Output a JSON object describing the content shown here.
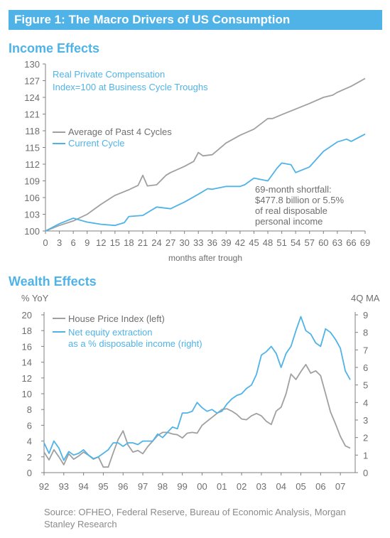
{
  "figure_title": "Figure 1: The Macro Drivers of US Consumption",
  "sections": {
    "income_title": "Income Effects",
    "wealth_title": "Wealth Effects"
  },
  "source_note": "Source: OFHEO, Federal Reserve, Bureau of Economic Analysis, Morgan Stanley Research",
  "colors": {
    "accent": "#4fb3e8",
    "gray_series": "#a0a0a0",
    "axis": "#7f7f7f"
  },
  "chart_data": [
    {
      "type": "line",
      "title": "Real Private Compensation",
      "subtitle": "Index=100 at Business Cycle Troughs",
      "xlabel": "months after trough",
      "ylabel": "",
      "xlim": [
        0,
        69
      ],
      "ylim": [
        100,
        130
      ],
      "x_ticks": [
        0,
        3,
        6,
        9,
        12,
        15,
        18,
        21,
        24,
        27,
        30,
        33,
        36,
        39,
        42,
        45,
        48,
        51,
        54,
        57,
        60,
        63,
        66,
        69
      ],
      "y_ticks": [
        100,
        103,
        106,
        109,
        112,
        115,
        118,
        121,
        124,
        127,
        130
      ],
      "legend_position": "upper-left",
      "grid": false,
      "annotation": [
        "69-month shortfall:",
        "$477.8 billion or 5.5%",
        "of real disposable",
        "personal income"
      ],
      "series": [
        {
          "name": "Average of Past 4 Cycles",
          "color": "#a0a0a0",
          "x": [
            0,
            3,
            6,
            9,
            12,
            15,
            18,
            20,
            21,
            22,
            24,
            26,
            27,
            30,
            32,
            33,
            34,
            36,
            39,
            42,
            45,
            48,
            49,
            51,
            54,
            57,
            60,
            62,
            63,
            66,
            69
          ],
          "y": [
            100.0,
            101.0,
            101.8,
            103.0,
            104.8,
            106.4,
            107.4,
            108.2,
            110.0,
            108.1,
            108.3,
            110.0,
            110.5,
            111.6,
            112.5,
            114.1,
            113.5,
            113.7,
            115.8,
            117.2,
            118.3,
            120.2,
            120.2,
            120.9,
            121.9,
            122.9,
            124.0,
            124.4,
            124.9,
            126.0,
            127.4
          ]
        },
        {
          "name": "Current Cycle",
          "color": "#4fb3e8",
          "x": [
            0,
            3,
            6,
            9,
            12,
            15,
            17,
            18,
            21,
            24,
            27,
            30,
            33,
            35,
            36,
            39,
            42,
            43,
            45,
            48,
            50,
            51,
            53,
            54,
            57,
            60,
            63,
            65,
            66,
            69
          ],
          "y": [
            100.0,
            101.3,
            102.3,
            101.6,
            101.2,
            101.0,
            101.5,
            102.6,
            102.8,
            104.3,
            104.0,
            105.2,
            106.6,
            107.6,
            107.5,
            108.0,
            108.0,
            108.3,
            109.5,
            109.0,
            111.3,
            112.2,
            111.9,
            110.5,
            111.5,
            114.3,
            116.0,
            116.5,
            116.1,
            117.4
          ]
        }
      ]
    },
    {
      "type": "line",
      "title": "",
      "xlabel": "",
      "ylabel": "% YoY",
      "y2label": "4Q MA",
      "xlim": [
        1992,
        2007.75
      ],
      "ylim": [
        0,
        20
      ],
      "y2lim": [
        0,
        9
      ],
      "x_tick_labels": [
        "92",
        "93",
        "94",
        "95",
        "96",
        "97",
        "98",
        "99",
        "00",
        "01",
        "02",
        "03",
        "04",
        "05",
        "06",
        "07"
      ],
      "y_ticks": [
        0,
        2,
        4,
        6,
        8,
        10,
        12,
        14,
        16,
        18,
        20
      ],
      "y2_ticks": [
        0,
        1,
        2,
        3,
        4,
        5,
        6,
        7,
        8,
        9
      ],
      "legend_position": "upper-left",
      "grid": false,
      "series": [
        {
          "name": "House Price Index (left)",
          "axis": "left",
          "color": "#a0a0a0",
          "x": [
            1992.0,
            1992.25,
            1992.5,
            1992.75,
            1993.0,
            1993.25,
            1993.5,
            1993.75,
            1994.0,
            1994.25,
            1994.5,
            1994.75,
            1995.0,
            1995.25,
            1995.5,
            1995.75,
            1996.0,
            1996.25,
            1996.5,
            1996.75,
            1997.0,
            1997.25,
            1997.5,
            1997.75,
            1998.0,
            1998.25,
            1998.5,
            1998.75,
            1999.0,
            1999.25,
            1999.5,
            1999.75,
            2000.0,
            2000.25,
            2000.5,
            2000.75,
            2001.0,
            2001.25,
            2001.5,
            2001.75,
            2002.0,
            2002.25,
            2002.5,
            2002.75,
            2003.0,
            2003.25,
            2003.5,
            2003.75,
            2004.0,
            2004.25,
            2004.5,
            2004.75,
            2005.0,
            2005.25,
            2005.5,
            2005.75,
            2006.0,
            2006.25,
            2006.5,
            2006.75,
            2007.0,
            2007.25,
            2007.5
          ],
          "y": [
            2.6,
            1.6,
            2.9,
            2.0,
            1.0,
            2.4,
            1.7,
            2.1,
            2.6,
            2.2,
            1.7,
            2.0,
            0.7,
            0.7,
            2.5,
            4.2,
            5.3,
            3.5,
            2.6,
            2.8,
            2.4,
            3.3,
            4.0,
            4.7,
            5.1,
            5.1,
            4.9,
            4.8,
            4.4,
            5.0,
            5.1,
            5.0,
            6.0,
            6.5,
            7.0,
            7.5,
            8.0,
            8.1,
            7.8,
            7.4,
            6.8,
            6.7,
            7.2,
            7.5,
            7.2,
            6.5,
            6.1,
            7.8,
            8.3,
            10.0,
            12.5,
            11.8,
            12.8,
            13.7,
            12.6,
            12.9,
            12.3,
            10.0,
            7.7,
            6.2,
            4.6,
            3.4,
            3.1
          ]
        },
        {
          "name": "Net equity extraction as a % disposable income (right)",
          "axis": "right",
          "color": "#4fb3e8",
          "x": [
            1992.0,
            1992.25,
            1992.5,
            1992.75,
            1993.0,
            1993.25,
            1993.5,
            1993.75,
            1994.0,
            1994.25,
            1994.5,
            1994.75,
            1995.0,
            1995.25,
            1995.5,
            1995.75,
            1996.0,
            1996.25,
            1996.5,
            1996.75,
            1997.0,
            1997.25,
            1997.5,
            1997.75,
            1998.0,
            1998.25,
            1998.5,
            1998.75,
            1999.0,
            1999.25,
            1999.5,
            1999.75,
            2000.0,
            2000.25,
            2000.5,
            2000.75,
            2001.0,
            2001.25,
            2001.5,
            2001.75,
            2002.0,
            2002.25,
            2002.5,
            2002.75,
            2003.0,
            2003.25,
            2003.5,
            2003.75,
            2004.0,
            2004.25,
            2004.5,
            2004.75,
            2005.0,
            2005.25,
            2005.5,
            2005.75,
            2006.0,
            2006.25,
            2006.5,
            2006.75,
            2007.0,
            2007.25,
            2007.5
          ],
          "y": [
            1.7,
            1.1,
            1.8,
            1.4,
            0.7,
            1.2,
            1.0,
            1.1,
            1.3,
            1.0,
            0.8,
            0.9,
            1.1,
            1.3,
            1.7,
            1.7,
            1.5,
            1.7,
            1.7,
            1.6,
            1.8,
            1.8,
            1.8,
            2.2,
            2.0,
            2.3,
            2.6,
            2.5,
            3.4,
            3.4,
            3.5,
            4.0,
            3.7,
            3.5,
            3.6,
            3.4,
            3.5,
            3.9,
            4.2,
            4.4,
            4.5,
            4.8,
            5.0,
            5.6,
            6.7,
            6.9,
            7.2,
            6.8,
            6.0,
            6.8,
            7.2,
            8.1,
            8.9,
            8.1,
            7.9,
            7.4,
            7.2,
            8.2,
            8.0,
            7.6,
            7.1,
            5.8,
            5.3
          ]
        }
      ]
    }
  ]
}
